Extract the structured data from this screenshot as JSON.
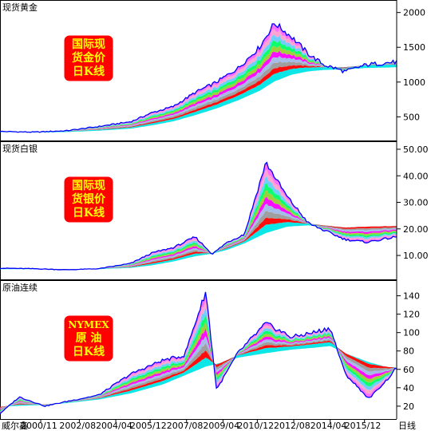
{
  "chart_data": [
    {
      "type": "line",
      "title": "现货黄金",
      "badge": [
        "国际现",
        "货金价",
        "日K线"
      ],
      "yticks": [
        500,
        1000,
        1500,
        2000
      ],
      "ylim": [
        160,
        2180
      ],
      "x": [
        1998.9,
        2000.5,
        2002.0,
        2003.5,
        2005.0,
        2006.0,
        2007.0,
        2008.0,
        2009.0,
        2010.0,
        2011.0,
        2011.7,
        2012.5,
        2013.3,
        2014.0,
        2015.0,
        2016.0,
        2017.4
      ],
      "values": [
        290,
        280,
        300,
        360,
        430,
        560,
        650,
        850,
        1000,
        1200,
        1500,
        1850,
        1650,
        1400,
        1250,
        1150,
        1250,
        1290
      ],
      "ma_long": [
        290,
        285,
        290,
        310,
        340,
        390,
        450,
        540,
        640,
        760,
        900,
        1040,
        1140,
        1190,
        1210,
        1220,
        1240,
        1250
      ]
    },
    {
      "type": "line",
      "title": "现货白银",
      "badge": [
        "国际现",
        "货银价",
        "日K线"
      ],
      "yticks": [
        10,
        20,
        30,
        40,
        50
      ],
      "yticklabels": [
        "10.00",
        "20.00",
        "30.00",
        "40.00",
        "50.00"
      ],
      "ylim": [
        1,
        53
      ],
      "x": [
        1998.9,
        2000.5,
        2002.0,
        2003.5,
        2005.0,
        2006.0,
        2007.0,
        2008.0,
        2008.8,
        2009.5,
        2010.3,
        2011.3,
        2012.3,
        2013.3,
        2014.0,
        2015.0,
        2016.0,
        2017.4
      ],
      "values": [
        5.2,
        5.0,
        4.6,
        5.0,
        7.0,
        11.0,
        13.0,
        17.0,
        10.5,
        15.0,
        18.0,
        45.0,
        32.0,
        22.0,
        19.5,
        16.0,
        15.0,
        17.0
      ],
      "ma_long": [
        5.0,
        5.0,
        4.9,
        5.0,
        5.5,
        6.5,
        8.0,
        10.0,
        11.0,
        12.5,
        15.0,
        19.0,
        21.5,
        22.0,
        21.5,
        21.0,
        21.5,
        21.5
      ]
    },
    {
      "type": "line",
      "title": "原油连续",
      "badge": [
        "NYMEX",
        "原 油",
        "日K线"
      ],
      "yticks": [
        20,
        40,
        60,
        80,
        100,
        120,
        140
      ],
      "ylim": [
        6,
        157
      ],
      "x": [
        1998.9,
        1999.8,
        2001.0,
        2002.0,
        2003.5,
        2005.0,
        2006.5,
        2007.5,
        2008.5,
        2009.0,
        2010.0,
        2011.3,
        2012.5,
        2013.5,
        2014.3,
        2015.0,
        2016.1,
        2017.0,
        2017.4
      ],
      "values": [
        12,
        30,
        20,
        25,
        32,
        55,
        70,
        75,
        145,
        38,
        78,
        110,
        95,
        100,
        105,
        55,
        28,
        50,
        62
      ],
      "ma_long": [
        20,
        21,
        22,
        24,
        28,
        35,
        45,
        55,
        65,
        68,
        75,
        80,
        84,
        86,
        88,
        80,
        70,
        64,
        62
      ]
    }
  ],
  "x_axis": {
    "app_label": "威尔鑫",
    "ticks": [
      {
        "x": 2000.8,
        "label": "2000/11"
      },
      {
        "x": 2002.6,
        "label": "2002/08"
      },
      {
        "x": 2004.3,
        "label": "2004/04"
      },
      {
        "x": 2005.9,
        "label": "2005/12"
      },
      {
        "x": 2007.6,
        "label": "2007/08"
      },
      {
        "x": 2009.3,
        "label": "2009/04"
      },
      {
        "x": 2010.9,
        "label": "2010/12"
      },
      {
        "x": 2012.6,
        "label": "2012/08"
      },
      {
        "x": 2014.3,
        "label": "2014/04"
      },
      {
        "x": 2015.9,
        "label": "2015/12"
      }
    ],
    "period_label": "日线"
  },
  "colors": {
    "price": "#0000ff",
    "badge_fill": "#ff0000",
    "badge_text": "#ffff00",
    "bands": [
      "#00e5e5",
      "#ff0000",
      "#9a9a9a",
      "#a0b8e8",
      "#ff00ff",
      "#9acd32",
      "#00ff66",
      "#66ccff",
      "#ffa0d0",
      "#ff66ff"
    ]
  }
}
